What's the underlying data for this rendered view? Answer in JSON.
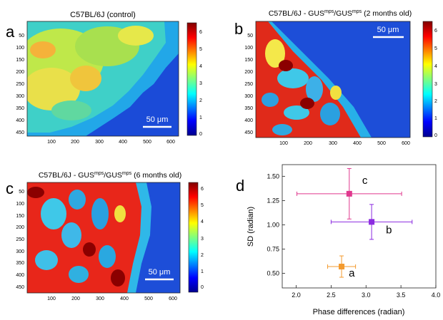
{
  "panels": [
    {
      "letter": "a",
      "title": "C57BL/6J (control)",
      "scale_bar": "50 μm",
      "xticks": [
        "100",
        "200",
        "300",
        "400",
        "500",
        "600"
      ],
      "yticks": [
        "50",
        "100",
        "150",
        "200",
        "250",
        "300",
        "350",
        "400",
        "450"
      ],
      "colorbar": [
        "6",
        "5",
        "4",
        "3",
        "2",
        "1",
        "0"
      ]
    },
    {
      "letter": "b",
      "title": "C57BL/6J - GUS",
      "sup1": "mps",
      "mid": "/GUS",
      "sup2": "mps",
      "tail": " (2 months old)",
      "scale_bar": "50 μm",
      "xticks": [
        "100",
        "200",
        "300",
        "400",
        "500",
        "600"
      ],
      "yticks": [
        "50",
        "100",
        "150",
        "200",
        "250",
        "300",
        "350",
        "400",
        "450"
      ],
      "colorbar": [
        "6",
        "5",
        "4",
        "3",
        "2",
        "1",
        "0"
      ]
    },
    {
      "letter": "c",
      "title": "C57BL/6J - GUS",
      "sup1": "mps",
      "mid": "/GUS",
      "sup2": "mps",
      "tail": " (6 months old)",
      "scale_bar": "50 μm",
      "xticks": [
        "100",
        "200",
        "300",
        "400",
        "500",
        "600"
      ],
      "yticks": [
        "50",
        "100",
        "150",
        "200",
        "250",
        "300",
        "350",
        "400",
        "450"
      ],
      "colorbar": [
        "6",
        "5",
        "4",
        "3",
        "2",
        "1",
        "0"
      ]
    }
  ],
  "chart_data": {
    "type": "scatter",
    "letter": "d",
    "xlabel": "Phase differences (radian)",
    "ylabel": "SD (radian)",
    "xlim": [
      1.8,
      4.0
    ],
    "ylim": [
      0.35,
      1.62
    ],
    "xticks": [
      "2.0",
      "2.5",
      "3.0",
      "3.5",
      "4.0"
    ],
    "yticks": [
      "0.50",
      "0.75",
      "1.00",
      "1.25",
      "1.50"
    ],
    "points": [
      {
        "label": "a",
        "x": 2.65,
        "y": 0.57,
        "xerr": 0.2,
        "yerr": 0.11,
        "color": "#f39a2e"
      },
      {
        "label": "b",
        "x": 3.08,
        "y": 1.03,
        "xerr": 0.58,
        "yerr": 0.18,
        "color": "#8b2be0"
      },
      {
        "label": "c",
        "x": 2.76,
        "y": 1.32,
        "xerr": 0.75,
        "yerr": 0.26,
        "color": "#e0388e"
      }
    ]
  }
}
